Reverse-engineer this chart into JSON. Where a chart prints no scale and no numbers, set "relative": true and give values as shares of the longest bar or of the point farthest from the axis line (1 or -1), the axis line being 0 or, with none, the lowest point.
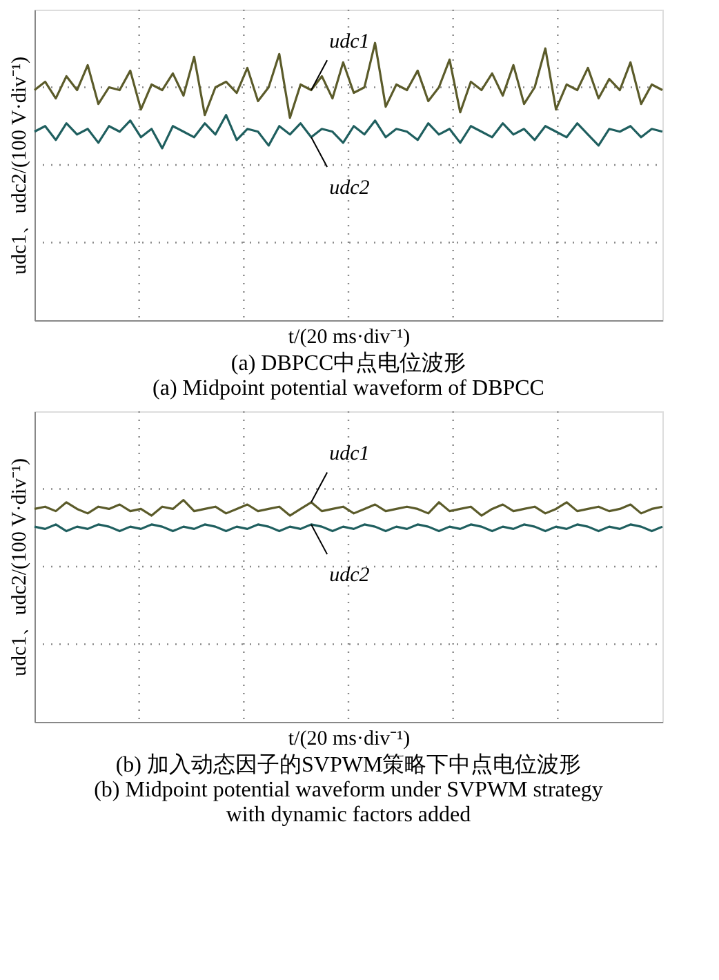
{
  "chart_data": [
    {
      "type": "line",
      "relative": true,
      "title": "(a) DBPCC中点电位波形",
      "subtitle": "(a) Midpoint potential waveform of DBPCC",
      "xlabel": "t/(20 ms·div⁻¹)",
      "ylabel": "udc1、udc2/(100 V·div⁻¹)",
      "grid": true,
      "line_style": "solid",
      "marker": "none",
      "categories": [
        null,
        null,
        null,
        null,
        null,
        null,
        null,
        null,
        null,
        null,
        null,
        null,
        null,
        null,
        null,
        null,
        null,
        null,
        null,
        null,
        null,
        null,
        null,
        null,
        null,
        null,
        null,
        null,
        null,
        null,
        null,
        null,
        null,
        null,
        null,
        null,
        null,
        null,
        null,
        null,
        null,
        null,
        null,
        null,
        null,
        null,
        null,
        null,
        null,
        null,
        null,
        null,
        null,
        null,
        null,
        null,
        null,
        null,
        null,
        null
      ],
      "series": [
        {
          "name": "udc1",
          "color": "#5b5b2a",
          "values": [
            0.83,
            0.86,
            0.8,
            0.88,
            0.83,
            0.92,
            0.78,
            0.84,
            0.83,
            0.9,
            0.76,
            0.85,
            0.83,
            0.89,
            0.81,
            0.95,
            0.74,
            0.84,
            0.86,
            0.82,
            0.91,
            0.79,
            0.84,
            0.96,
            0.73,
            0.85,
            0.83,
            0.88,
            0.8,
            0.93,
            0.82,
            0.84,
            1.0,
            0.77,
            0.85,
            0.83,
            0.9,
            0.79,
            0.84,
            0.94,
            0.75,
            0.86,
            0.83,
            0.89,
            0.81,
            0.92,
            0.78,
            0.84,
            0.98,
            0.76,
            0.85,
            0.83,
            0.91,
            0.8,
            0.87,
            0.83,
            0.93,
            0.78,
            0.85,
            0.83
          ]
        },
        {
          "name": "udc2",
          "color": "#1f5f5f",
          "values": [
            0.68,
            0.7,
            0.65,
            0.71,
            0.67,
            0.69,
            0.64,
            0.7,
            0.68,
            0.72,
            0.66,
            0.69,
            0.62,
            0.7,
            0.68,
            0.66,
            0.71,
            0.67,
            0.74,
            0.65,
            0.69,
            0.68,
            0.63,
            0.7,
            0.67,
            0.71,
            0.66,
            0.69,
            0.68,
            0.64,
            0.7,
            0.67,
            0.72,
            0.66,
            0.69,
            0.68,
            0.65,
            0.71,
            0.67,
            0.69,
            0.64,
            0.7,
            0.68,
            0.66,
            0.71,
            0.67,
            0.69,
            0.65,
            0.7,
            0.68,
            0.66,
            0.71,
            0.67,
            0.63,
            0.69,
            0.68,
            0.7,
            0.66,
            0.69,
            0.68
          ]
        }
      ]
    },
    {
      "type": "line",
      "relative": true,
      "title": "(b) 加入动态因子的SVPWM策略下中点电位波形",
      "subtitle": "(b) Midpoint potential waveform under SVPWM strategy with dynamic factors added",
      "xlabel": "t/(20 ms·div⁻¹)",
      "ylabel": "udc1、udc2/(100 V·div⁻¹)",
      "grid": true,
      "line_style": "solid",
      "marker": "none",
      "categories": [
        null,
        null,
        null,
        null,
        null,
        null,
        null,
        null,
        null,
        null,
        null,
        null,
        null,
        null,
        null,
        null,
        null,
        null,
        null,
        null,
        null,
        null,
        null,
        null,
        null,
        null,
        null,
        null,
        null,
        null,
        null,
        null,
        null,
        null,
        null,
        null,
        null,
        null,
        null,
        null,
        null,
        null,
        null,
        null,
        null,
        null,
        null,
        null,
        null,
        null,
        null,
        null,
        null,
        null,
        null,
        null,
        null,
        null,
        null,
        null
      ],
      "series": [
        {
          "name": "udc1",
          "color": "#5b5b2a",
          "values": [
            0.96,
            0.97,
            0.95,
            0.99,
            0.96,
            0.94,
            0.97,
            0.96,
            0.98,
            0.95,
            0.96,
            0.93,
            0.97,
            0.96,
            1.0,
            0.95,
            0.96,
            0.97,
            0.94,
            0.96,
            0.98,
            0.95,
            0.96,
            0.97,
            0.93,
            0.96,
            0.99,
            0.95,
            0.96,
            0.97,
            0.94,
            0.96,
            0.98,
            0.95,
            0.96,
            0.97,
            0.96,
            0.94,
            0.99,
            0.95,
            0.96,
            0.97,
            0.93,
            0.96,
            0.98,
            0.95,
            0.96,
            0.97,
            0.94,
            0.96,
            0.99,
            0.95,
            0.96,
            0.97,
            0.95,
            0.96,
            0.98,
            0.94,
            0.96,
            0.97
          ]
        },
        {
          "name": "udc2",
          "color": "#1f5f5f",
          "values": [
            0.88,
            0.87,
            0.89,
            0.86,
            0.88,
            0.87,
            0.89,
            0.88,
            0.86,
            0.88,
            0.87,
            0.89,
            0.88,
            0.86,
            0.88,
            0.87,
            0.89,
            0.88,
            0.86,
            0.88,
            0.87,
            0.89,
            0.88,
            0.86,
            0.88,
            0.87,
            0.89,
            0.88,
            0.86,
            0.88,
            0.87,
            0.89,
            0.88,
            0.86,
            0.88,
            0.87,
            0.89,
            0.88,
            0.86,
            0.88,
            0.87,
            0.89,
            0.88,
            0.86,
            0.88,
            0.87,
            0.89,
            0.88,
            0.86,
            0.88,
            0.87,
            0.89,
            0.88,
            0.86,
            0.88,
            0.87,
            0.89,
            0.88,
            0.86,
            0.88
          ]
        }
      ]
    }
  ]
}
